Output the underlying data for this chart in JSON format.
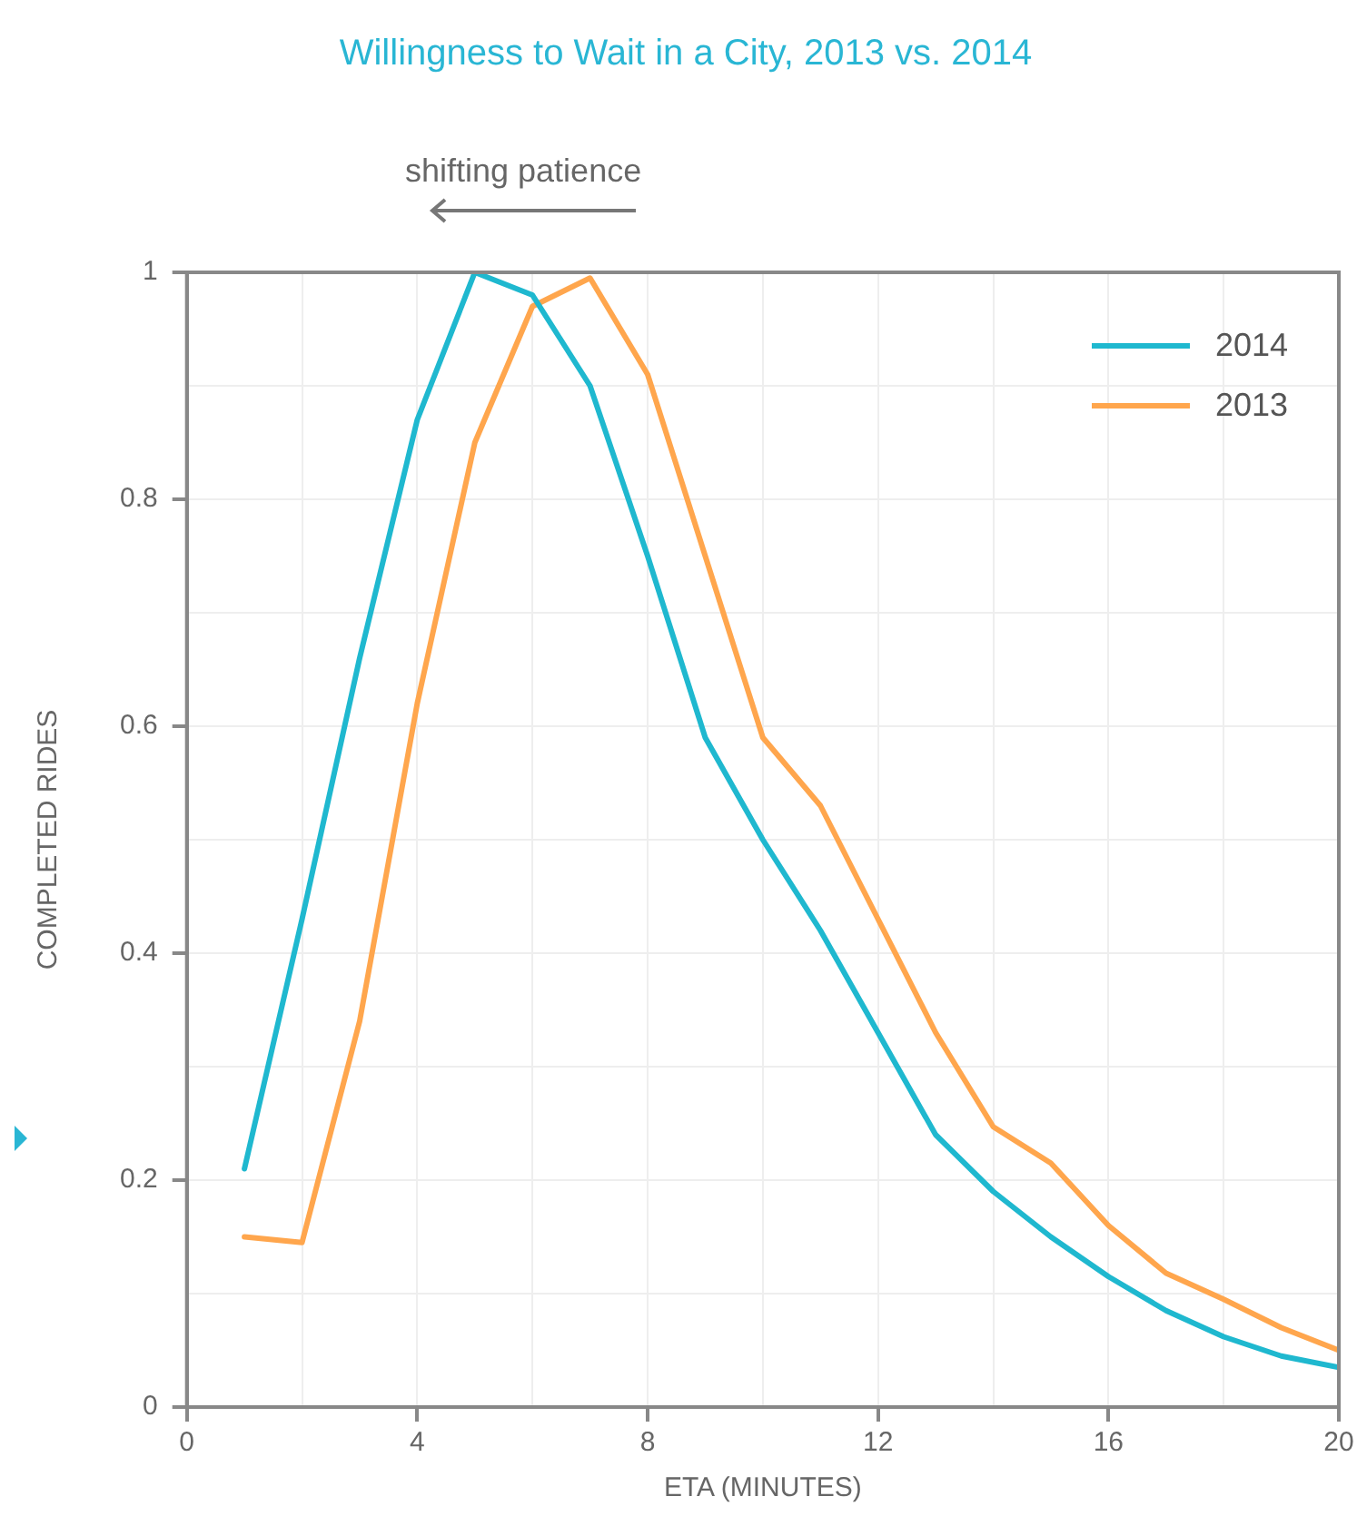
{
  "chart_data": {
    "type": "line",
    "title": "Willingness to Wait in a City, 2013 vs. 2014",
    "xlabel": "ETA (MINUTES)",
    "ylabel": "COMPLETED RIDES",
    "annotations": [
      "shifting patience"
    ],
    "x": [
      1,
      2,
      3,
      4,
      5,
      6,
      7,
      8,
      9,
      10,
      11,
      12,
      13,
      14,
      15,
      16,
      17,
      18,
      19,
      20
    ],
    "series": [
      {
        "name": "2014",
        "color": "#1fb8cf",
        "values": [
          0.21,
          0.43,
          0.66,
          0.87,
          1.0,
          0.98,
          0.9,
          0.75,
          0.59,
          0.5,
          0.42,
          0.33,
          0.24,
          0.19,
          0.15,
          0.115,
          0.085,
          0.062,
          0.045,
          0.035
        ]
      },
      {
        "name": "2013",
        "color": "#ffa64d",
        "values": [
          0.15,
          0.145,
          0.34,
          0.62,
          0.85,
          0.97,
          0.995,
          0.91,
          0.75,
          0.59,
          0.53,
          0.43,
          0.33,
          0.247,
          0.215,
          0.16,
          0.118,
          0.095,
          0.07,
          0.05
        ]
      }
    ],
    "xlim": [
      0,
      20
    ],
    "xticks": [
      0,
      {
        "value": 2,
        "label": null
      },
      4,
      {
        "value": 6,
        "label": null
      },
      8,
      {
        "value": 10,
        "label": null
      },
      12,
      {
        "value": 14,
        "label": null
      },
      16,
      {
        "value": 18,
        "label": null
      },
      20
    ],
    "ylim": [
      0,
      1
    ],
    "yticks": [
      0,
      {
        "value": 0.1,
        "label": null
      },
      0.2,
      {
        "value": 0.3,
        "label": null
      },
      0.4,
      {
        "value": 0.5,
        "label": null
      },
      0.6,
      {
        "value": 0.7,
        "label": null
      },
      0.8,
      {
        "value": 0.9,
        "label": null
      },
      1
    ],
    "grid": true,
    "legend": "top right",
    "marker": "none",
    "line_style": "solid"
  }
}
